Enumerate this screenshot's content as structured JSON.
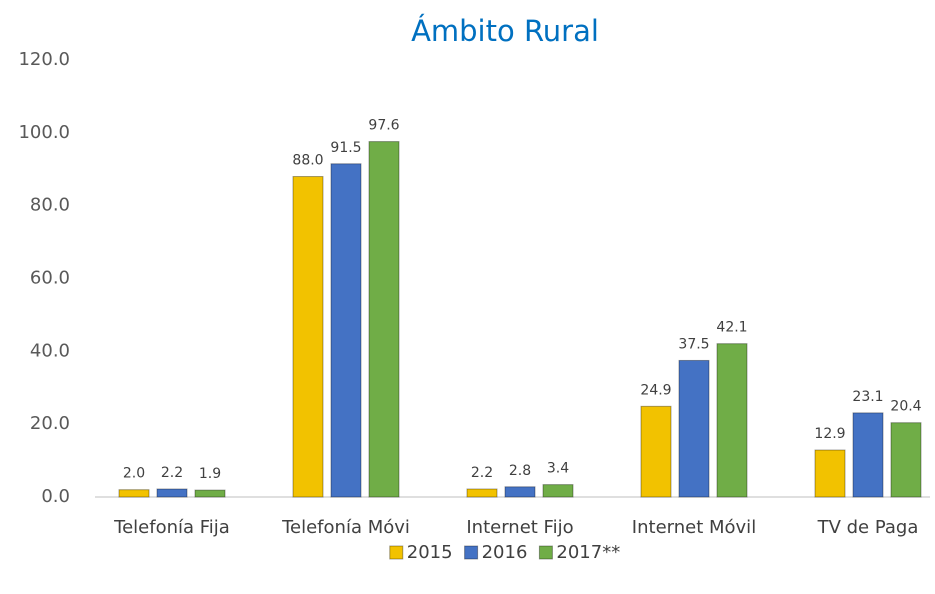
{
  "chart_data": {
    "type": "bar",
    "title": "Ámbito Rural",
    "categories": [
      "Telefonía Fija",
      "Telefonía Móvi",
      "Internet Fijo",
      "Internet Móvil",
      "TV de Paga"
    ],
    "series": [
      {
        "name": "2015",
        "color": "#f2c200",
        "values": [
          2.0,
          88.0,
          2.2,
          24.9,
          12.9
        ],
        "value_labels": [
          "2.0",
          "88.0",
          "2.2",
          "24.9",
          "12.9"
        ]
      },
      {
        "name": "2016",
        "color": "#4472c4",
        "values": [
          2.2,
          91.5,
          2.8,
          37.5,
          23.1
        ],
        "value_labels": [
          "2.2",
          "91.5",
          "2.8",
          "37.5",
          "23.1"
        ]
      },
      {
        "name": "2017**",
        "color": "#70ad47",
        "values": [
          1.9,
          97.6,
          3.4,
          42.1,
          20.4
        ],
        "value_labels": [
          "1.9",
          "97.6",
          "3.4",
          "42.1",
          "20.4"
        ]
      }
    ],
    "ylim": [
      0,
      120
    ],
    "yticks": [
      {
        "value": 0,
        "label": "0.0"
      },
      {
        "value": 20,
        "label": "20.0"
      },
      {
        "value": 40,
        "label": "40.0"
      },
      {
        "value": 60,
        "label": "60.0"
      },
      {
        "value": 80,
        "label": "80.0"
      },
      {
        "value": 100,
        "label": "100.0"
      },
      {
        "value": 120,
        "label": "120.0"
      }
    ],
    "grid": false,
    "legend": "bottom"
  }
}
